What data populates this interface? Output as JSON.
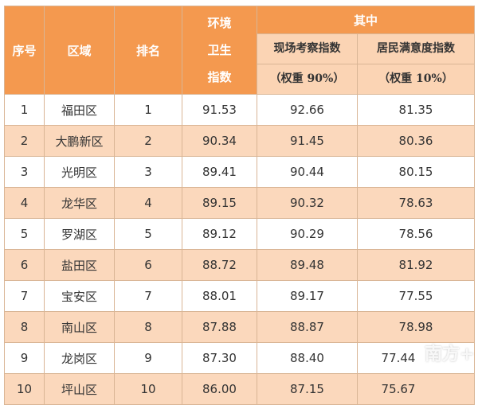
{
  "headers": {
    "index": "序号",
    "region": "区域",
    "rank": "排名",
    "env_index": [
      "环境",
      "卫生",
      "指数"
    ],
    "of_which": "其中",
    "site_index": [
      "现场考察指数",
      "（权重 90%）"
    ],
    "resident_index": [
      "居民满意度指数",
      "（权重 10%）"
    ]
  },
  "rows": [
    {
      "index": "1",
      "region": "福田区",
      "rank": "1",
      "env": "91.53",
      "site": "92.66",
      "resident": "81.35"
    },
    {
      "index": "2",
      "region": "大鹏新区",
      "rank": "2",
      "env": "90.34",
      "site": "91.45",
      "resident": "80.36"
    },
    {
      "index": "3",
      "region": "光明区",
      "rank": "3",
      "env": "89.41",
      "site": "90.44",
      "resident": "80.15"
    },
    {
      "index": "4",
      "region": "龙华区",
      "rank": "4",
      "env": "89.15",
      "site": "90.32",
      "resident": "78.63"
    },
    {
      "index": "5",
      "region": "罗湖区",
      "rank": "5",
      "env": "89.12",
      "site": "90.29",
      "resident": "78.56"
    },
    {
      "index": "6",
      "region": "盐田区",
      "rank": "6",
      "env": "88.72",
      "site": "89.48",
      "resident": "81.92"
    },
    {
      "index": "7",
      "region": "宝安区",
      "rank": "7",
      "env": "88.01",
      "site": "89.17",
      "resident": "77.55"
    },
    {
      "index": "8",
      "region": "南山区",
      "rank": "8",
      "env": "87.88",
      "site": "88.87",
      "resident": "78.98"
    },
    {
      "index": "9",
      "region": "龙岗区",
      "rank": "9",
      "env": "87.30",
      "site": "88.40",
      "resident": "77.44"
    },
    {
      "index": "10",
      "region": "坪山区",
      "rank": "10",
      "env": "86.00",
      "site": "87.15",
      "resident": "75.67"
    }
  ],
  "watermark": "南方+",
  "colors": {
    "header": "#f4994f",
    "subheader": "#fbd4b4",
    "alt_row": "#fbd8bc"
  }
}
